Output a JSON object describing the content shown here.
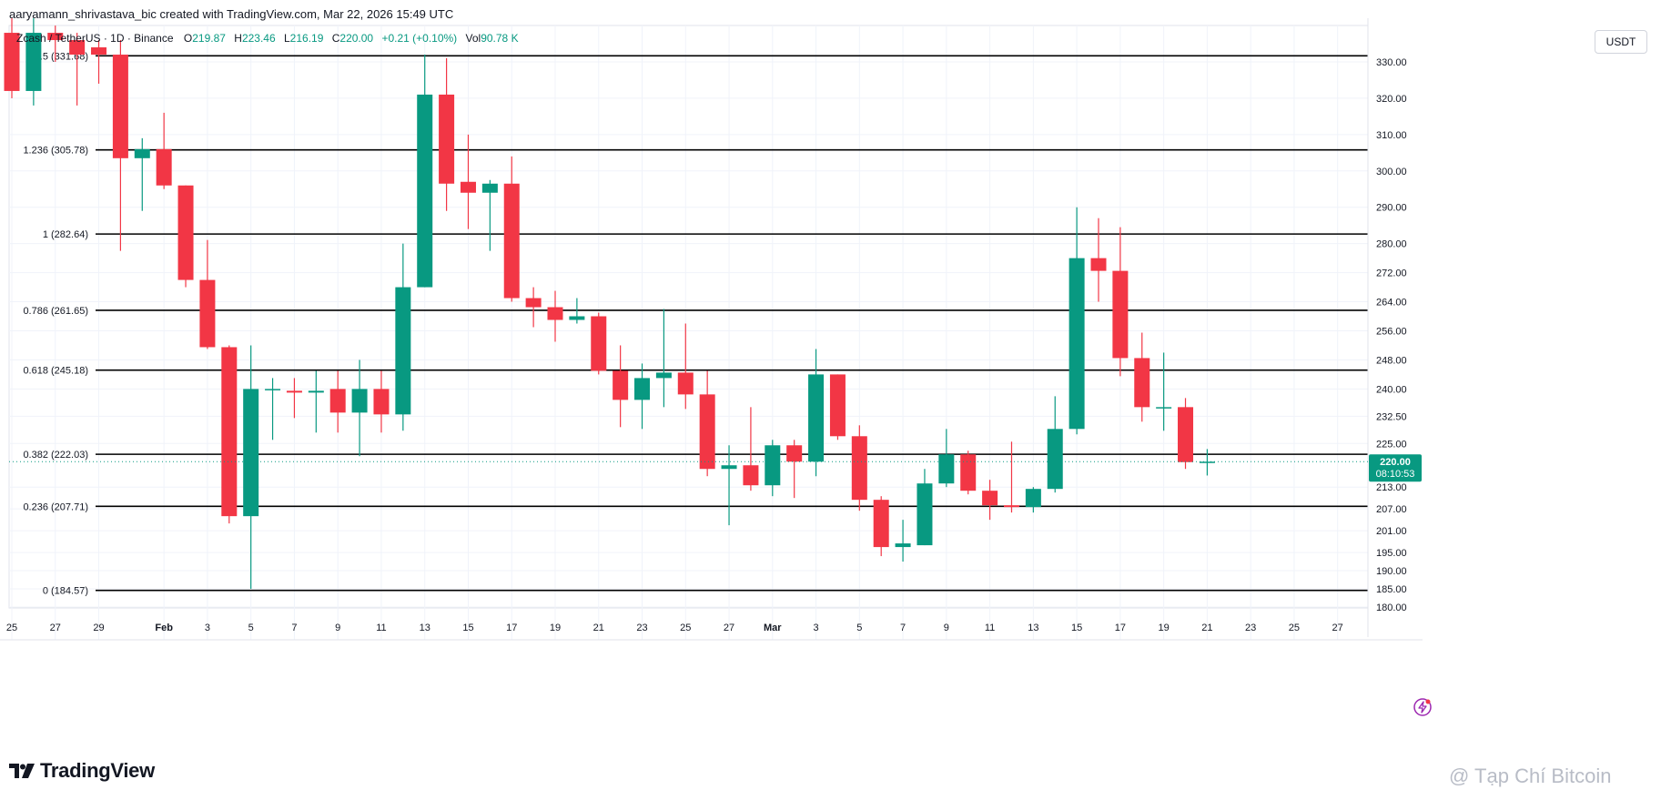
{
  "header": {
    "attribution": "aaryamann_shrivastava_bic created with TradingView.com, Mar 22, 2026 15:49 UTC"
  },
  "legend": {
    "symbol": "Zcash / TetherUS · 1D · Binance",
    "o_label": "O",
    "o_value": "219.87",
    "h_label": "H",
    "h_value": "223.46",
    "l_label": "L",
    "l_value": "216.19",
    "c_label": "C",
    "c_value": "220.00",
    "change": "+0.21 (+0.10%)",
    "vol_label": "Vol",
    "vol_value": "90.78 K"
  },
  "currency": "USDT",
  "last_price": {
    "value": "220.00",
    "countdown": "08:10:53",
    "color": "#089981"
  },
  "brand": {
    "name": "TradingView"
  },
  "watermark": "@ Tạp Chí Bitcoin",
  "colors": {
    "up": "#089981",
    "down": "#f23645",
    "fib_line": "#000000",
    "grid": "#f0f3fa"
  },
  "chart_data": {
    "type": "candlestick",
    "title": "Zcash / TetherUS · 1D · Binance",
    "ylim": [
      180,
      336
    ],
    "price_ticks": [
      {
        "value": 330,
        "label": "330.00"
      },
      {
        "value": 320,
        "label": "320.00"
      },
      {
        "value": 310,
        "label": "310.00"
      },
      {
        "value": 300,
        "label": "300.00"
      },
      {
        "value": 290,
        "label": "290.00"
      },
      {
        "value": 280,
        "label": "280.00"
      },
      {
        "value": 272,
        "label": "272.00"
      },
      {
        "value": 264,
        "label": "264.00"
      },
      {
        "value": 256,
        "label": "256.00"
      },
      {
        "value": 248,
        "label": "248.00"
      },
      {
        "value": 240,
        "label": "240.00"
      },
      {
        "value": 232.5,
        "label": "232.50"
      },
      {
        "value": 225,
        "label": "225.00"
      },
      {
        "value": 213,
        "label": "213.00"
      },
      {
        "value": 207,
        "label": "207.00"
      },
      {
        "value": 201,
        "label": "201.00"
      },
      {
        "value": 195,
        "label": "195.00"
      },
      {
        "value": 190,
        "label": "190.00"
      },
      {
        "value": 185,
        "label": "185.00"
      },
      {
        "value": 180,
        "label": "180.00"
      }
    ],
    "x_ticks": [
      {
        "date": "2026-01-25",
        "label": "25"
      },
      {
        "date": "2026-01-27",
        "label": "27"
      },
      {
        "date": "2026-01-29",
        "label": "29"
      },
      {
        "date": "2026-02-01",
        "label": "Feb"
      },
      {
        "date": "2026-02-03",
        "label": "3"
      },
      {
        "date": "2026-02-05",
        "label": "5"
      },
      {
        "date": "2026-02-07",
        "label": "7"
      },
      {
        "date": "2026-02-09",
        "label": "9"
      },
      {
        "date": "2026-02-11",
        "label": "11"
      },
      {
        "date": "2026-02-13",
        "label": "13"
      },
      {
        "date": "2026-02-15",
        "label": "15"
      },
      {
        "date": "2026-02-17",
        "label": "17"
      },
      {
        "date": "2026-02-19",
        "label": "19"
      },
      {
        "date": "2026-02-21",
        "label": "21"
      },
      {
        "date": "2026-02-23",
        "label": "23"
      },
      {
        "date": "2026-02-25",
        "label": "25"
      },
      {
        "date": "2026-02-27",
        "label": "27"
      },
      {
        "date": "2026-03-01",
        "label": "Mar"
      },
      {
        "date": "2026-03-03",
        "label": "3"
      },
      {
        "date": "2026-03-05",
        "label": "5"
      },
      {
        "date": "2026-03-07",
        "label": "7"
      },
      {
        "date": "2026-03-09",
        "label": "9"
      },
      {
        "date": "2026-03-11",
        "label": "11"
      },
      {
        "date": "2026-03-13",
        "label": "13"
      },
      {
        "date": "2026-03-15",
        "label": "15"
      },
      {
        "date": "2026-03-17",
        "label": "17"
      },
      {
        "date": "2026-03-19",
        "label": "19"
      },
      {
        "date": "2026-03-21",
        "label": "21"
      },
      {
        "date": "2026-03-23",
        "label": "23"
      },
      {
        "date": "2026-03-25",
        "label": "25"
      },
      {
        "date": "2026-03-27",
        "label": "27"
      }
    ],
    "fib_levels": [
      {
        "ratio": "1.5",
        "price": 331.68,
        "label": "1.5 (331.68)"
      },
      {
        "ratio": "1.236",
        "price": 305.78,
        "label": "1.236 (305.78)"
      },
      {
        "ratio": "1",
        "price": 282.64,
        "label": "1 (282.64)"
      },
      {
        "ratio": "0.786",
        "price": 261.65,
        "label": "0.786 (261.65)"
      },
      {
        "ratio": "0.618",
        "price": 245.18,
        "label": "0.618 (245.18)"
      },
      {
        "ratio": "0.382",
        "price": 222.03,
        "label": "0.382 (222.03)"
      },
      {
        "ratio": "0.236",
        "price": 207.71,
        "label": "0.236 (207.71)"
      },
      {
        "ratio": "0",
        "price": 184.57,
        "label": "0 (184.57)"
      }
    ],
    "candles": [
      {
        "date": "2026-01-25",
        "o": 338.0,
        "h": 342.0,
        "l": 320.0,
        "c": 322.0
      },
      {
        "date": "2026-01-26",
        "o": 322.0,
        "h": 342.0,
        "l": 318.0,
        "c": 338.0
      },
      {
        "date": "2026-01-27",
        "o": 338.0,
        "h": 340.0,
        "l": 330.0,
        "c": 336.0
      },
      {
        "date": "2026-01-28",
        "o": 336.0,
        "h": 338.0,
        "l": 318.0,
        "c": 332.0
      },
      {
        "date": "2026-01-29",
        "o": 334.0,
        "h": 336.0,
        "l": 324.0,
        "c": 332.0
      },
      {
        "date": "2026-01-30",
        "o": 332.0,
        "h": 336.0,
        "l": 278.0,
        "c": 303.5
      },
      {
        "date": "2026-01-31",
        "o": 303.5,
        "h": 309.0,
        "l": 289.0,
        "c": 306.0
      },
      {
        "date": "2026-02-01",
        "o": 306.0,
        "h": 316.0,
        "l": 295.0,
        "c": 296.0
      },
      {
        "date": "2026-02-02",
        "o": 296.0,
        "h": 296.0,
        "l": 268.0,
        "c": 270.0
      },
      {
        "date": "2026-02-03",
        "o": 270.0,
        "h": 281.0,
        "l": 251.0,
        "c": 251.5
      },
      {
        "date": "2026-02-04",
        "o": 251.5,
        "h": 252.0,
        "l": 203.0,
        "c": 205.0
      },
      {
        "date": "2026-02-05",
        "o": 205.0,
        "h": 252.0,
        "l": 185.0,
        "c": 240.0
      },
      {
        "date": "2026-02-06",
        "o": 240.0,
        "h": 243.0,
        "l": 226.0,
        "c": 240.0
      },
      {
        "date": "2026-02-07",
        "o": 239.5,
        "h": 243.0,
        "l": 232.0,
        "c": 239.0
      },
      {
        "date": "2026-02-08",
        "o": 239.0,
        "h": 245.0,
        "l": 228.0,
        "c": 239.5
      },
      {
        "date": "2026-02-09",
        "o": 240.0,
        "h": 245.0,
        "l": 228.0,
        "c": 233.5
      },
      {
        "date": "2026-02-10",
        "o": 233.5,
        "h": 248.0,
        "l": 221.5,
        "c": 240.0
      },
      {
        "date": "2026-02-11",
        "o": 240.0,
        "h": 245.0,
        "l": 228.0,
        "c": 233.0
      },
      {
        "date": "2026-02-12",
        "o": 233.0,
        "h": 280.0,
        "l": 228.5,
        "c": 268.0
      },
      {
        "date": "2026-02-13",
        "o": 268.0,
        "h": 332.0,
        "l": 268.0,
        "c": 321.0
      },
      {
        "date": "2026-02-14",
        "o": 321.0,
        "h": 331.0,
        "l": 289.0,
        "c": 296.5
      },
      {
        "date": "2026-02-15",
        "o": 297.0,
        "h": 310.0,
        "l": 284.0,
        "c": 294.0
      },
      {
        "date": "2026-02-16",
        "o": 294.0,
        "h": 297.5,
        "l": 278.0,
        "c": 296.5
      },
      {
        "date": "2026-02-17",
        "o": 296.5,
        "h": 304.0,
        "l": 264.0,
        "c": 265.0
      },
      {
        "date": "2026-02-18",
        "o": 265.0,
        "h": 268.0,
        "l": 257.0,
        "c": 262.5
      },
      {
        "date": "2026-02-19",
        "o": 262.5,
        "h": 267.0,
        "l": 253.0,
        "c": 259.0
      },
      {
        "date": "2026-02-20",
        "o": 259.0,
        "h": 265.0,
        "l": 258.0,
        "c": 260.0
      },
      {
        "date": "2026-02-21",
        "o": 260.0,
        "h": 261.0,
        "l": 244.0,
        "c": 245.0
      },
      {
        "date": "2026-02-22",
        "o": 245.0,
        "h": 252.0,
        "l": 229.5,
        "c": 237.0
      },
      {
        "date": "2026-02-23",
        "o": 237.0,
        "h": 247.0,
        "l": 229.0,
        "c": 243.0
      },
      {
        "date": "2026-02-24",
        "o": 243.0,
        "h": 262.0,
        "l": 235.0,
        "c": 244.5
      },
      {
        "date": "2026-02-25",
        "o": 244.5,
        "h": 258.0,
        "l": 234.5,
        "c": 238.5
      },
      {
        "date": "2026-02-26",
        "o": 238.5,
        "h": 245.0,
        "l": 216.0,
        "c": 218.0
      },
      {
        "date": "2026-02-27",
        "o": 218.0,
        "h": 224.5,
        "l": 202.5,
        "c": 219.0
      },
      {
        "date": "2026-02-28",
        "o": 219.0,
        "h": 235.0,
        "l": 212.0,
        "c": 213.5
      },
      {
        "date": "2026-03-01",
        "o": 213.5,
        "h": 226.0,
        "l": 210.5,
        "c": 224.5
      },
      {
        "date": "2026-03-02",
        "o": 224.5,
        "h": 226.0,
        "l": 210.0,
        "c": 220.0
      },
      {
        "date": "2026-03-03",
        "o": 220.0,
        "h": 251.0,
        "l": 216.0,
        "c": 244.0
      },
      {
        "date": "2026-03-04",
        "o": 244.0,
        "h": 244.0,
        "l": 226.0,
        "c": 227.0
      },
      {
        "date": "2026-03-05",
        "o": 227.0,
        "h": 230.0,
        "l": 206.5,
        "c": 209.5
      },
      {
        "date": "2026-03-06",
        "o": 209.5,
        "h": 210.5,
        "l": 194.0,
        "c": 196.5
      },
      {
        "date": "2026-03-07",
        "o": 196.5,
        "h": 204.0,
        "l": 192.5,
        "c": 197.5
      },
      {
        "date": "2026-03-08",
        "o": 197.0,
        "h": 218.0,
        "l": 197.0,
        "c": 214.0
      },
      {
        "date": "2026-03-09",
        "o": 214.0,
        "h": 229.0,
        "l": 213.0,
        "c": 222.0
      },
      {
        "date": "2026-03-10",
        "o": 222.0,
        "h": 223.0,
        "l": 211.0,
        "c": 212.0
      },
      {
        "date": "2026-03-11",
        "o": 212.0,
        "h": 215.0,
        "l": 204.0,
        "c": 208.0
      },
      {
        "date": "2026-03-12",
        "o": 208.0,
        "h": 225.5,
        "l": 206.0,
        "c": 207.5
      },
      {
        "date": "2026-03-13",
        "o": 207.5,
        "h": 213.0,
        "l": 206.0,
        "c": 212.5
      },
      {
        "date": "2026-03-14",
        "o": 212.5,
        "h": 238.0,
        "l": 211.5,
        "c": 229.0
      },
      {
        "date": "2026-03-15",
        "o": 229.0,
        "h": 290.0,
        "l": 227.5,
        "c": 276.0
      },
      {
        "date": "2026-03-16",
        "o": 276.0,
        "h": 287.0,
        "l": 264.0,
        "c": 272.5
      },
      {
        "date": "2026-03-17",
        "o": 272.5,
        "h": 284.5,
        "l": 243.5,
        "c": 248.5
      },
      {
        "date": "2026-03-18",
        "o": 248.5,
        "h": 255.5,
        "l": 231.0,
        "c": 235.0
      },
      {
        "date": "2026-03-19",
        "o": 235.0,
        "h": 250.0,
        "l": 228.5,
        "c": 235.0
      },
      {
        "date": "2026-03-20",
        "o": 235.0,
        "h": 237.5,
        "l": 218.0,
        "c": 219.87
      },
      {
        "date": "2026-03-21",
        "o": 219.87,
        "h": 223.46,
        "l": 216.19,
        "c": 220.0
      }
    ]
  }
}
